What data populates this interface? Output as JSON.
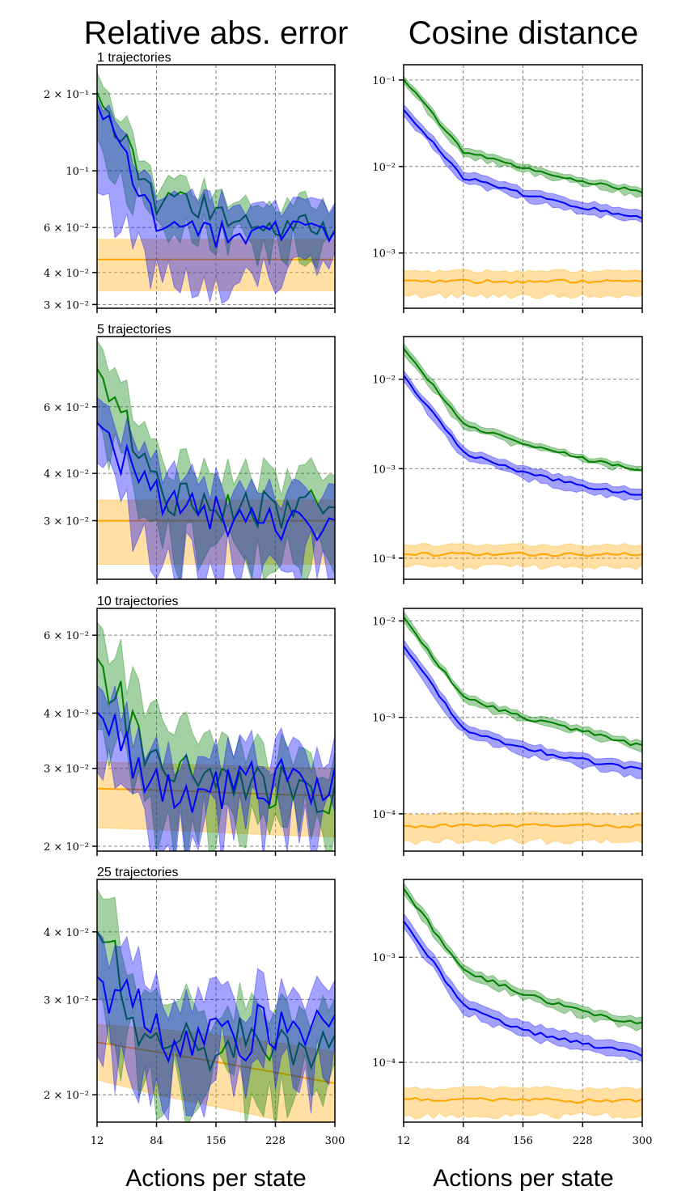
{
  "titles": {
    "left": "Relative abs. error",
    "right": "Cosine distance"
  },
  "xlabels": {
    "left": "Actions per state",
    "right": "Actions per state"
  },
  "colors": {
    "green": "#008000",
    "blue": "#0000ff",
    "orange": "#ffa500",
    "grid": "#808080"
  },
  "chart_data": [
    {
      "type": "line",
      "id": "rae-1",
      "row_label": "1 trajectories",
      "yscale": "log",
      "ylim": [
        0.029,
        0.26
      ],
      "xlim": [
        12,
        300
      ],
      "x_ticks": [
        "12",
        "84",
        "156",
        "228",
        "300"
      ],
      "y_ticks": [
        {
          "value": 0.2,
          "label": "2 × 10⁻¹"
        },
        {
          "value": 0.1,
          "label": "10⁻¹"
        },
        {
          "value": 0.06,
          "label": "6 × 10⁻²"
        },
        {
          "value": 0.04,
          "label": "4 × 10⁻²"
        },
        {
          "value": 0.03,
          "label": "3 × 10⁻²"
        }
      ],
      "x": [
        12,
        84,
        156,
        228,
        300
      ],
      "series": [
        {
          "name": "green",
          "values": [
            0.2,
            0.076,
            0.07,
            0.061,
            0.06
          ],
          "lower": [
            0.13,
            0.06,
            0.055,
            0.05,
            0.048
          ],
          "upper": [
            0.24,
            0.089,
            0.082,
            0.075,
            0.075
          ]
        },
        {
          "name": "blue",
          "values": [
            0.18,
            0.065,
            0.056,
            0.059,
            0.058
          ],
          "lower": [
            0.085,
            0.037,
            0.036,
            0.038,
            0.04
          ],
          "upper": [
            0.19,
            0.085,
            0.076,
            0.072,
            0.075
          ]
        },
        {
          "name": "orange",
          "values": [
            0.045,
            0.045,
            0.045,
            0.045,
            0.045
          ],
          "lower": [
            0.034,
            0.034,
            0.034,
            0.034,
            0.034
          ],
          "upper": [
            0.054,
            0.054,
            0.054,
            0.054,
            0.054
          ]
        }
      ]
    },
    {
      "type": "line",
      "id": "cos-1",
      "yscale": "log",
      "ylim": [
        0.00023,
        0.15
      ],
      "xlim": [
        12,
        300
      ],
      "x_ticks": [
        "12",
        "84",
        "156",
        "228",
        "300"
      ],
      "y_ticks": [
        {
          "value": 0.1,
          "label": "10⁻¹"
        },
        {
          "value": 0.01,
          "label": "10⁻²"
        },
        {
          "value": 0.001,
          "label": "10⁻³"
        }
      ],
      "x": [
        12,
        84,
        156,
        228,
        300
      ],
      "series": [
        {
          "name": "green",
          "values": [
            0.1,
            0.015,
            0.0095,
            0.0068,
            0.005
          ],
          "lower": [
            0.09,
            0.0135,
            0.0087,
            0.0062,
            0.0045
          ],
          "upper": [
            0.11,
            0.017,
            0.0105,
            0.0075,
            0.0055
          ]
        },
        {
          "name": "blue",
          "values": [
            0.045,
            0.0075,
            0.0048,
            0.0034,
            0.0025
          ],
          "lower": [
            0.038,
            0.0065,
            0.0042,
            0.0029,
            0.0022
          ],
          "upper": [
            0.052,
            0.009,
            0.0056,
            0.004,
            0.003
          ]
        },
        {
          "name": "orange",
          "values": [
            0.00048,
            0.00047,
            0.00047,
            0.00047,
            0.00047
          ],
          "lower": [
            0.00032,
            0.00032,
            0.00032,
            0.00032,
            0.00032
          ],
          "upper": [
            0.00062,
            0.00062,
            0.00062,
            0.00062,
            0.00062
          ]
        }
      ]
    },
    {
      "type": "line",
      "id": "rae-5",
      "row_label": "5 trajectories",
      "yscale": "log",
      "ylim": [
        0.021,
        0.092
      ],
      "xlim": [
        12,
        300
      ],
      "x_ticks": [
        "12",
        "84",
        "156",
        "228",
        "300"
      ],
      "y_ticks": [
        {
          "value": 0.06,
          "label": "6 × 10⁻²"
        },
        {
          "value": 0.04,
          "label": "4 × 10⁻²"
        },
        {
          "value": 0.03,
          "label": "3 × 10⁻²"
        }
      ],
      "x": [
        12,
        84,
        156,
        228,
        300
      ],
      "series": [
        {
          "name": "green",
          "values": [
            0.075,
            0.036,
            0.032,
            0.032,
            0.032
          ],
          "lower": [
            0.055,
            0.026,
            0.024,
            0.024,
            0.024
          ],
          "upper": [
            0.089,
            0.044,
            0.04,
            0.039,
            0.039
          ]
        },
        {
          "name": "blue",
          "values": [
            0.054,
            0.034,
            0.031,
            0.03,
            0.029
          ],
          "lower": [
            0.042,
            0.024,
            0.023,
            0.023,
            0.023
          ],
          "upper": [
            0.063,
            0.041,
            0.037,
            0.036,
            0.036
          ]
        },
        {
          "name": "orange",
          "values": [
            0.03,
            0.03,
            0.03,
            0.03,
            0.03
          ],
          "lower": [
            0.023,
            0.023,
            0.023,
            0.023,
            0.023
          ],
          "upper": [
            0.034,
            0.034,
            0.034,
            0.034,
            0.034
          ]
        }
      ]
    },
    {
      "type": "line",
      "id": "cos-5",
      "yscale": "log",
      "ylim": [
        5.8e-05,
        0.03
      ],
      "xlim": [
        12,
        300
      ],
      "x_ticks": [
        "12",
        "84",
        "156",
        "228",
        "300"
      ],
      "y_ticks": [
        {
          "value": 0.01,
          "label": "10⁻²"
        },
        {
          "value": 0.001,
          "label": "10⁻³"
        },
        {
          "value": 0.0001,
          "label": "10⁻⁴"
        }
      ],
      "x": [
        12,
        84,
        156,
        228,
        300
      ],
      "series": [
        {
          "name": "green",
          "values": [
            0.022,
            0.0031,
            0.0019,
            0.0013,
            0.00095
          ],
          "lower": [
            0.019,
            0.0028,
            0.0017,
            0.0012,
            0.00088
          ],
          "upper": [
            0.025,
            0.0035,
            0.0021,
            0.0014,
            0.00105
          ]
        },
        {
          "name": "blue",
          "values": [
            0.011,
            0.0015,
            0.0009,
            0.00065,
            0.0005
          ],
          "lower": [
            0.0095,
            0.0013,
            0.00078,
            0.00055,
            0.00043
          ],
          "upper": [
            0.0125,
            0.0017,
            0.00105,
            0.00075,
            0.00058
          ]
        },
        {
          "name": "orange",
          "values": [
            0.00011,
            0.00011,
            0.00011,
            0.00011,
            0.00011
          ],
          "lower": [
            8e-05,
            8e-05,
            8e-05,
            8e-05,
            8e-05
          ],
          "upper": [
            0.00014,
            0.00014,
            0.00014,
            0.00014,
            0.00014
          ]
        }
      ]
    },
    {
      "type": "line",
      "id": "rae-10",
      "row_label": "10 trajectories",
      "yscale": "log",
      "ylim": [
        0.0195,
        0.069
      ],
      "xlim": [
        12,
        300
      ],
      "x_ticks": [
        "12",
        "84",
        "156",
        "228",
        "300"
      ],
      "y_ticks": [
        {
          "value": 0.06,
          "label": "6 × 10⁻²"
        },
        {
          "value": 0.04,
          "label": "4 × 10⁻²"
        },
        {
          "value": 0.03,
          "label": "3 × 10⁻²"
        },
        {
          "value": 0.02,
          "label": "2 × 10⁻²"
        }
      ],
      "x": [
        12,
        84,
        156,
        228,
        300
      ],
      "series": [
        {
          "name": "green",
          "values": [
            0.053,
            0.03,
            0.028,
            0.027,
            0.026
          ],
          "lower": [
            0.038,
            0.023,
            0.022,
            0.022,
            0.021
          ],
          "upper": [
            0.064,
            0.039,
            0.034,
            0.032,
            0.031
          ]
        },
        {
          "name": "blue",
          "values": [
            0.04,
            0.027,
            0.027,
            0.028,
            0.028
          ],
          "lower": [
            0.03,
            0.021,
            0.022,
            0.023,
            0.023
          ],
          "upper": [
            0.046,
            0.032,
            0.032,
            0.033,
            0.033
          ]
        },
        {
          "name": "orange",
          "values": [
            0.027,
            0.0268,
            0.0265,
            0.0262,
            0.026
          ],
          "lower": [
            0.022,
            0.0218,
            0.0215,
            0.0212,
            0.021
          ],
          "upper": [
            0.031,
            0.0308,
            0.0305,
            0.0302,
            0.03
          ]
        }
      ]
    },
    {
      "type": "line",
      "id": "cos-10",
      "yscale": "log",
      "ylim": [
        4.1e-05,
        0.0135
      ],
      "xlim": [
        12,
        300
      ],
      "x_ticks": [
        "12",
        "84",
        "156",
        "228",
        "300"
      ],
      "y_ticks": [
        {
          "value": 0.01,
          "label": "10⁻²"
        },
        {
          "value": 0.001,
          "label": "10⁻³"
        },
        {
          "value": 0.0001,
          "label": "10⁻⁴"
        }
      ],
      "x": [
        12,
        84,
        156,
        228,
        300
      ],
      "series": [
        {
          "name": "green",
          "values": [
            0.011,
            0.0016,
            0.001,
            0.00072,
            0.0005
          ],
          "lower": [
            0.0097,
            0.00145,
            0.00091,
            0.00065,
            0.00045
          ],
          "upper": [
            0.0125,
            0.00175,
            0.0011,
            0.0008,
            0.00055
          ]
        },
        {
          "name": "blue",
          "values": [
            0.0055,
            0.00075,
            0.00048,
            0.00036,
            0.00028
          ],
          "lower": [
            0.0047,
            0.00066,
            0.00042,
            0.00031,
            0.00024
          ],
          "upper": [
            0.0064,
            0.00086,
            0.00055,
            0.00041,
            0.00032
          ]
        },
        {
          "name": "orange",
          "values": [
            7.5e-05,
            7.5e-05,
            7.5e-05,
            7.5e-05,
            7.5e-05
          ],
          "lower": [
            5.2e-05,
            5.2e-05,
            5.2e-05,
            5.2e-05,
            5.2e-05
          ],
          "upper": [
            0.0001,
            0.0001,
            0.0001,
            0.0001,
            0.0001
          ]
        }
      ]
    },
    {
      "type": "line",
      "id": "rae-25",
      "row_label": "25 trajectories",
      "yscale": "log",
      "ylim": [
        0.0178,
        0.05
      ],
      "xlim": [
        12,
        300
      ],
      "x_ticks": [
        "12",
        "84",
        "156",
        "228",
        "300"
      ],
      "y_ticks": [
        {
          "value": 0.04,
          "label": "4 × 10⁻²"
        },
        {
          "value": 0.03,
          "label": "3 × 10⁻²"
        },
        {
          "value": 0.02,
          "label": "2 × 10⁻²"
        }
      ],
      "x": [
        12,
        84,
        156,
        228,
        300
      ],
      "series": [
        {
          "name": "green",
          "values": [
            0.04,
            0.024,
            0.025,
            0.024,
            0.0235
          ],
          "lower": [
            0.03,
            0.02,
            0.021,
            0.0205,
            0.0195
          ],
          "upper": [
            0.048,
            0.029,
            0.029,
            0.028,
            0.0275
          ]
        },
        {
          "name": "blue",
          "values": [
            0.033,
            0.026,
            0.026,
            0.026,
            0.025
          ],
          "lower": [
            0.023,
            0.021,
            0.022,
            0.022,
            0.021
          ],
          "upper": [
            0.04,
            0.031,
            0.031,
            0.03,
            0.029
          ]
        },
        {
          "name": "orange",
          "values": [
            0.025,
            0.024,
            0.023,
            0.022,
            0.021
          ],
          "lower": [
            0.0213,
            0.02,
            0.019,
            0.018,
            0.017
          ],
          "upper": [
            0.027,
            0.0265,
            0.0258,
            0.025,
            0.024
          ]
        }
      ]
    },
    {
      "type": "line",
      "id": "cos-25",
      "yscale": "log",
      "ylim": [
        2.7e-05,
        0.0055
      ],
      "xlim": [
        12,
        300
      ],
      "x_ticks": [
        "12",
        "84",
        "156",
        "228",
        "300"
      ],
      "y_ticks": [
        {
          "value": 0.001,
          "label": "10⁻³"
        },
        {
          "value": 0.0001,
          "label": "10⁻⁴"
        }
      ],
      "x": [
        12,
        84,
        156,
        228,
        300
      ],
      "series": [
        {
          "name": "green",
          "values": [
            0.0045,
            0.00075,
            0.00045,
            0.0003,
            0.00023
          ],
          "lower": [
            0.004,
            0.00068,
            0.00041,
            0.00027,
            0.00021
          ],
          "upper": [
            0.0051,
            0.00083,
            0.0005,
            0.00033,
            0.00026
          ]
        },
        {
          "name": "blue",
          "values": [
            0.0022,
            0.00035,
            0.0002,
            0.00015,
            0.00012
          ],
          "lower": [
            0.0019,
            0.0003,
            0.00017,
            0.00013,
            0.0001
          ],
          "upper": [
            0.0026,
            0.00041,
            0.00024,
            0.00018,
            0.00014
          ]
        },
        {
          "name": "orange",
          "values": [
            4.5e-05,
            4.4e-05,
            4.4e-05,
            4.3e-05,
            4.3e-05
          ],
          "lower": [
            3.1e-05,
            3.1e-05,
            3.1e-05,
            3.1e-05,
            3.1e-05
          ],
          "upper": [
            5.7e-05,
            5.7e-05,
            5.7e-05,
            5.6e-05,
            5.6e-05
          ]
        }
      ]
    }
  ]
}
